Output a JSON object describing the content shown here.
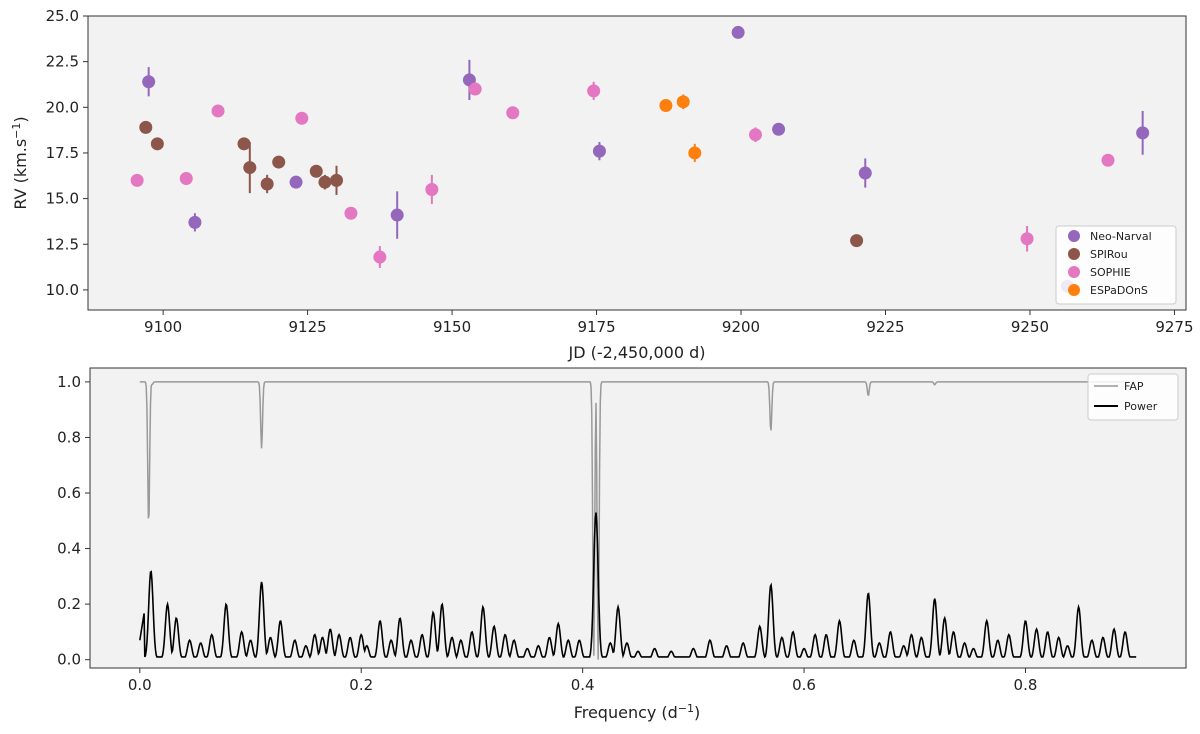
{
  "chart_data": [
    {
      "type": "scatter",
      "title": "",
      "xlabel": "JD (-2,450,000 d)",
      "ylabel_main": "RV (km.s",
      "ylabel_exp": "−1",
      "ylabel_close": ")",
      "xlim": [
        9087,
        9277
      ],
      "ylim": [
        8.9,
        25.0
      ],
      "xticks": [
        9100,
        9125,
        9150,
        9175,
        9200,
        9225,
        9250,
        9275
      ],
      "xtick_labels": [
        "9100",
        "9125",
        "9150",
        "9175",
        "9200",
        "9225",
        "9250",
        "9275"
      ],
      "yticks": [
        10.0,
        12.5,
        15.0,
        17.5,
        20.0,
        22.5,
        25.0
      ],
      "ytick_labels": [
        "10.0",
        "12.5",
        "15.0",
        "17.5",
        "20.0",
        "22.5",
        "25.0"
      ],
      "legend_position": "bottom-right",
      "series": [
        {
          "name": "Neo-Narval",
          "color": "#9467bd",
          "points": [
            {
              "x": 9097.5,
              "y": 21.4,
              "err": 0.8
            },
            {
              "x": 9105.5,
              "y": 13.7,
              "err": 0.5
            },
            {
              "x": 9123,
              "y": 15.9,
              "err": 0.2
            },
            {
              "x": 9140.5,
              "y": 14.1,
              "err": 1.3
            },
            {
              "x": 9153,
              "y": 21.5,
              "err": 1.1
            },
            {
              "x": 9175.5,
              "y": 17.6,
              "err": 0.5
            },
            {
              "x": 9199.5,
              "y": 24.1,
              "err": 0.2
            },
            {
              "x": 9206.5,
              "y": 18.8,
              "err": 0.2
            },
            {
              "x": 9221.5,
              "y": 16.4,
              "err": 0.8
            },
            {
              "x": 9256.5,
              "y": 10.2,
              "err": 0.2
            },
            {
              "x": 9269.5,
              "y": 18.6,
              "err": 1.2
            }
          ]
        },
        {
          "name": "SPIRou",
          "color": "#8c564b",
          "points": [
            {
              "x": 9097,
              "y": 18.9,
              "err": 0.2
            },
            {
              "x": 9099,
              "y": 18.0,
              "err": 0.2
            },
            {
              "x": 9114,
              "y": 18.0,
              "err": 0.2
            },
            {
              "x": 9115,
              "y": 16.7,
              "err": 1.4
            },
            {
              "x": 9118,
              "y": 15.8,
              "err": 0.5
            },
            {
              "x": 9120,
              "y": 17.0,
              "err": 0.2
            },
            {
              "x": 9126.5,
              "y": 16.5,
              "err": 0.2
            },
            {
              "x": 9128,
              "y": 15.9,
              "err": 0.4
            },
            {
              "x": 9130,
              "y": 16.0,
              "err": 0.8
            },
            {
              "x": 9220,
              "y": 12.7,
              "err": 0.2
            }
          ]
        },
        {
          "name": "SOPHIE",
          "color": "#e377c2",
          "points": [
            {
              "x": 9095.5,
              "y": 16.0,
              "err": 0.2
            },
            {
              "x": 9104,
              "y": 16.1,
              "err": 0.2
            },
            {
              "x": 9109.5,
              "y": 19.8,
              "err": 0.2
            },
            {
              "x": 9124,
              "y": 19.4,
              "err": 0.2
            },
            {
              "x": 9132.5,
              "y": 14.2,
              "err": 0.2
            },
            {
              "x": 9137.5,
              "y": 11.8,
              "err": 0.6
            },
            {
              "x": 9146.5,
              "y": 15.5,
              "err": 0.8
            },
            {
              "x": 9154,
              "y": 21.0,
              "err": 0.2
            },
            {
              "x": 9160.5,
              "y": 19.7,
              "err": 0.2
            },
            {
              "x": 9174.5,
              "y": 20.9,
              "err": 0.5
            },
            {
              "x": 9202.5,
              "y": 18.5,
              "err": 0.4
            },
            {
              "x": 9249.5,
              "y": 12.8,
              "err": 0.7
            },
            {
              "x": 9263.5,
              "y": 17.1,
              "err": 0.3
            }
          ]
        },
        {
          "name": "ESPaDOnS",
          "color": "#ff7f0e",
          "points": [
            {
              "x": 9187,
              "y": 20.1,
              "err": 0.2
            },
            {
              "x": 9190,
              "y": 20.3,
              "err": 0.4
            },
            {
              "x": 9192,
              "y": 17.5,
              "err": 0.5
            }
          ]
        }
      ]
    },
    {
      "type": "line",
      "title": "",
      "xlabel_main": "Frequency (d",
      "xlabel_exp": "−1",
      "xlabel_close": ")",
      "ylabel": "",
      "xlim": [
        -0.045,
        0.945
      ],
      "ylim": [
        -0.03,
        1.05
      ],
      "xticks": [
        0.0,
        0.2,
        0.4,
        0.6,
        0.8
      ],
      "xtick_labels": [
        "0.0",
        "0.2",
        "0.4",
        "0.6",
        "0.8"
      ],
      "yticks": [
        0.0,
        0.2,
        0.4,
        0.6,
        0.8,
        1.0
      ],
      "ytick_labels": [
        "0.0",
        "0.2",
        "0.4",
        "0.6",
        "0.8",
        "1.0"
      ],
      "legend_position": "top-right",
      "fmin": 0.0,
      "fmax": 0.9,
      "series": [
        {
          "name": "FAP",
          "color": "#999999",
          "dips": [
            {
              "f": 0.008,
              "min": 0.48
            },
            {
              "f": 0.011,
              "min": 0.99
            },
            {
              "f": 0.11,
              "min": 0.76
            },
            {
              "f": 0.41,
              "min": 0.0
            },
            {
              "f": 0.414,
              "min": 0.0
            },
            {
              "f": 0.57,
              "min": 0.82
            },
            {
              "f": 0.658,
              "min": 0.95
            },
            {
              "f": 0.718,
              "min": 0.99
            }
          ]
        },
        {
          "name": "Power",
          "color": "#000000",
          "peaks": [
            {
              "f": 0.01,
              "p": 0.32
            },
            {
              "f": 0.025,
              "p": 0.2
            },
            {
              "f": 0.033,
              "p": 0.15
            },
            {
              "f": 0.045,
              "p": 0.07
            },
            {
              "f": 0.055,
              "p": 0.06
            },
            {
              "f": 0.065,
              "p": 0.09
            },
            {
              "f": 0.078,
              "p": 0.2
            },
            {
              "f": 0.092,
              "p": 0.1
            },
            {
              "f": 0.1,
              "p": 0.07
            },
            {
              "f": 0.11,
              "p": 0.28
            },
            {
              "f": 0.118,
              "p": 0.08
            },
            {
              "f": 0.127,
              "p": 0.14
            },
            {
              "f": 0.14,
              "p": 0.07
            },
            {
              "f": 0.15,
              "p": 0.05
            },
            {
              "f": 0.158,
              "p": 0.09
            },
            {
              "f": 0.165,
              "p": 0.08
            },
            {
              "f": 0.172,
              "p": 0.11
            },
            {
              "f": 0.18,
              "p": 0.09
            },
            {
              "f": 0.19,
              "p": 0.08
            },
            {
              "f": 0.2,
              "p": 0.09
            },
            {
              "f": 0.205,
              "p": 0.05
            },
            {
              "f": 0.217,
              "p": 0.14
            },
            {
              "f": 0.227,
              "p": 0.07
            },
            {
              "f": 0.235,
              "p": 0.15
            },
            {
              "f": 0.245,
              "p": 0.07
            },
            {
              "f": 0.255,
              "p": 0.09
            },
            {
              "f": 0.265,
              "p": 0.17
            },
            {
              "f": 0.273,
              "p": 0.2
            },
            {
              "f": 0.282,
              "p": 0.08
            },
            {
              "f": 0.29,
              "p": 0.07
            },
            {
              "f": 0.3,
              "p": 0.1
            },
            {
              "f": 0.31,
              "p": 0.19
            },
            {
              "f": 0.32,
              "p": 0.12
            },
            {
              "f": 0.33,
              "p": 0.09
            },
            {
              "f": 0.338,
              "p": 0.07
            },
            {
              "f": 0.35,
              "p": 0.04
            },
            {
              "f": 0.36,
              "p": 0.05
            },
            {
              "f": 0.37,
              "p": 0.08
            },
            {
              "f": 0.378,
              "p": 0.13
            },
            {
              "f": 0.387,
              "p": 0.07
            },
            {
              "f": 0.397,
              "p": 0.07
            },
            {
              "f": 0.412,
              "p": 0.53
            },
            {
              "f": 0.425,
              "p": 0.06
            },
            {
              "f": 0.432,
              "p": 0.19
            },
            {
              "f": 0.44,
              "p": 0.06
            },
            {
              "f": 0.45,
              "p": 0.03
            },
            {
              "f": 0.465,
              "p": 0.04
            },
            {
              "f": 0.48,
              "p": 0.03
            },
            {
              "f": 0.5,
              "p": 0.04
            },
            {
              "f": 0.515,
              "p": 0.07
            },
            {
              "f": 0.53,
              "p": 0.05
            },
            {
              "f": 0.545,
              "p": 0.06
            },
            {
              "f": 0.56,
              "p": 0.12
            },
            {
              "f": 0.57,
              "p": 0.27
            },
            {
              "f": 0.58,
              "p": 0.08
            },
            {
              "f": 0.59,
              "p": 0.1
            },
            {
              "f": 0.6,
              "p": 0.04
            },
            {
              "f": 0.61,
              "p": 0.09
            },
            {
              "f": 0.62,
              "p": 0.09
            },
            {
              "f": 0.632,
              "p": 0.14
            },
            {
              "f": 0.645,
              "p": 0.07
            },
            {
              "f": 0.658,
              "p": 0.24
            },
            {
              "f": 0.668,
              "p": 0.06
            },
            {
              "f": 0.678,
              "p": 0.1
            },
            {
              "f": 0.69,
              "p": 0.05
            },
            {
              "f": 0.697,
              "p": 0.09
            },
            {
              "f": 0.706,
              "p": 0.08
            },
            {
              "f": 0.718,
              "p": 0.22
            },
            {
              "f": 0.727,
              "p": 0.15
            },
            {
              "f": 0.735,
              "p": 0.1
            },
            {
              "f": 0.745,
              "p": 0.06
            },
            {
              "f": 0.753,
              "p": 0.04
            },
            {
              "f": 0.765,
              "p": 0.14
            },
            {
              "f": 0.775,
              "p": 0.07
            },
            {
              "f": 0.785,
              "p": 0.09
            },
            {
              "f": 0.8,
              "p": 0.14
            },
            {
              "f": 0.81,
              "p": 0.11
            },
            {
              "f": 0.82,
              "p": 0.1
            },
            {
              "f": 0.83,
              "p": 0.08
            },
            {
              "f": 0.838,
              "p": 0.05
            },
            {
              "f": 0.848,
              "p": 0.19
            },
            {
              "f": 0.86,
              "p": 0.07
            },
            {
              "f": 0.87,
              "p": 0.08
            },
            {
              "f": 0.88,
              "p": 0.11
            },
            {
              "f": 0.89,
              "p": 0.1
            }
          ]
        }
      ]
    }
  ]
}
